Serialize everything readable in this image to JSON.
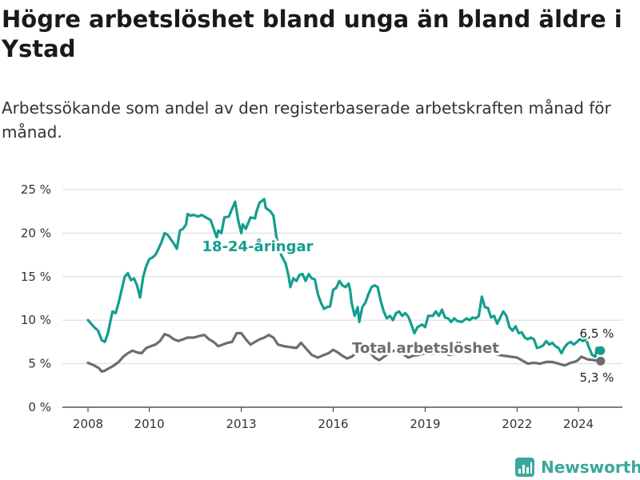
{
  "title": "Högre arbetslöshet bland unga än bland äldre i Ystad",
  "subtitle": "Arbetssökande som andel av den registerbaserade arbetskraften månad för månad.",
  "brand": {
    "name": "Newsworthy",
    "icon": "bar-chart-logo-icon",
    "color": "#3aa89c"
  },
  "chart_data": {
    "type": "line",
    "title": "Högre arbetslöshet bland unga än bland äldre i Ystad",
    "subtitle": "Arbetssökande som andel av den registerbaserade arbetskraften månad för månad.",
    "xlabel": "",
    "ylabel": "",
    "ylim": [
      0,
      25
    ],
    "xlim": [
      2007.5,
      2025.0
    ],
    "y_ticks": [
      0,
      5,
      10,
      15,
      20,
      25
    ],
    "y_tick_labels": [
      "0 %",
      "5 %",
      "10 %",
      "15 %",
      "20 %",
      "25 %"
    ],
    "x_ticks": [
      2008,
      2010,
      2013,
      2016,
      2019,
      2022,
      2024
    ],
    "x_tick_labels": [
      "2008",
      "2010",
      "2013",
      "2016",
      "2019",
      "2022",
      "2024"
    ],
    "grid": true,
    "legend": "inline labels",
    "series": [
      {
        "name": "18-24-åringar",
        "color": "#139e8e",
        "end_label": "6,5 %",
        "points": [
          [
            2008.0,
            10.0
          ],
          [
            2008.2,
            9.2
          ],
          [
            2008.33,
            8.8
          ],
          [
            2008.45,
            7.7
          ],
          [
            2008.55,
            7.5
          ],
          [
            2008.65,
            8.5
          ],
          [
            2008.8,
            11.0
          ],
          [
            2008.9,
            10.8
          ],
          [
            2009.0,
            12.0
          ],
          [
            2009.1,
            13.5
          ],
          [
            2009.2,
            15.0
          ],
          [
            2009.3,
            15.4
          ],
          [
            2009.4,
            14.6
          ],
          [
            2009.5,
            14.8
          ],
          [
            2009.6,
            14.0
          ],
          [
            2009.7,
            12.6
          ],
          [
            2009.8,
            15.0
          ],
          [
            2009.9,
            16.2
          ],
          [
            2010.0,
            17.0
          ],
          [
            2010.1,
            17.2
          ],
          [
            2010.2,
            17.5
          ],
          [
            2010.3,
            18.2
          ],
          [
            2010.4,
            19.0
          ],
          [
            2010.5,
            20.0
          ],
          [
            2010.6,
            19.8
          ],
          [
            2010.7,
            19.3
          ],
          [
            2010.8,
            18.8
          ],
          [
            2010.9,
            18.2
          ],
          [
            2011.0,
            20.3
          ],
          [
            2011.1,
            20.5
          ],
          [
            2011.2,
            21.0
          ],
          [
            2011.25,
            22.2
          ],
          [
            2011.35,
            22.0
          ],
          [
            2011.45,
            22.1
          ],
          [
            2011.6,
            21.9
          ],
          [
            2011.7,
            22.1
          ],
          [
            2011.85,
            21.8
          ],
          [
            2012.0,
            21.5
          ],
          [
            2012.1,
            20.5
          ],
          [
            2012.2,
            19.5
          ],
          [
            2012.25,
            20.3
          ],
          [
            2012.35,
            20.0
          ],
          [
            2012.45,
            21.8
          ],
          [
            2012.6,
            21.9
          ],
          [
            2012.7,
            22.8
          ],
          [
            2012.8,
            23.6
          ],
          [
            2012.9,
            21.5
          ],
          [
            2013.0,
            20.0
          ],
          [
            2013.05,
            21.0
          ],
          [
            2013.15,
            20.5
          ],
          [
            2013.3,
            21.8
          ],
          [
            2013.45,
            21.7
          ],
          [
            2013.5,
            22.5
          ],
          [
            2013.6,
            23.5
          ],
          [
            2013.75,
            23.9
          ],
          [
            2013.8,
            22.9
          ],
          [
            2013.95,
            22.5
          ],
          [
            2014.05,
            22.0
          ],
          [
            2014.15,
            19.5
          ],
          [
            2014.3,
            17.5
          ],
          [
            2014.45,
            16.5
          ],
          [
            2014.55,
            15.0
          ],
          [
            2014.6,
            13.8
          ],
          [
            2014.7,
            14.8
          ],
          [
            2014.8,
            14.5
          ],
          [
            2014.9,
            15.2
          ],
          [
            2015.0,
            15.3
          ],
          [
            2015.1,
            14.5
          ],
          [
            2015.2,
            15.3
          ],
          [
            2015.3,
            14.8
          ],
          [
            2015.4,
            14.7
          ],
          [
            2015.5,
            13.0
          ],
          [
            2015.6,
            12.0
          ],
          [
            2015.7,
            11.3
          ],
          [
            2015.8,
            11.5
          ],
          [
            2015.9,
            11.6
          ],
          [
            2016.0,
            13.5
          ],
          [
            2016.1,
            13.7
          ],
          [
            2016.2,
            14.5
          ],
          [
            2016.3,
            14.0
          ],
          [
            2016.4,
            13.8
          ],
          [
            2016.5,
            14.2
          ],
          [
            2016.55,
            13.5
          ],
          [
            2016.6,
            12.0
          ],
          [
            2016.7,
            10.5
          ],
          [
            2016.8,
            11.5
          ],
          [
            2016.85,
            9.8
          ],
          [
            2016.95,
            11.5
          ],
          [
            2017.05,
            12.0
          ],
          [
            2017.15,
            13.0
          ],
          [
            2017.25,
            13.8
          ],
          [
            2017.35,
            14.0
          ],
          [
            2017.45,
            13.8
          ],
          [
            2017.55,
            12.2
          ],
          [
            2017.65,
            11.0
          ],
          [
            2017.75,
            10.2
          ],
          [
            2017.85,
            10.5
          ],
          [
            2017.95,
            10.0
          ],
          [
            2018.05,
            10.8
          ],
          [
            2018.15,
            11.0
          ],
          [
            2018.25,
            10.5
          ],
          [
            2018.35,
            10.8
          ],
          [
            2018.45,
            10.4
          ],
          [
            2018.55,
            9.5
          ],
          [
            2018.65,
            8.5
          ],
          [
            2018.75,
            9.2
          ],
          [
            2018.9,
            9.5
          ],
          [
            2019.0,
            9.2
          ],
          [
            2019.1,
            10.5
          ],
          [
            2019.25,
            10.5
          ],
          [
            2019.35,
            11.0
          ],
          [
            2019.45,
            10.5
          ],
          [
            2019.55,
            11.2
          ],
          [
            2019.65,
            10.3
          ],
          [
            2019.75,
            10.2
          ],
          [
            2019.85,
            9.8
          ],
          [
            2019.95,
            10.2
          ],
          [
            2020.05,
            9.9
          ],
          [
            2020.2,
            9.8
          ],
          [
            2020.35,
            10.2
          ],
          [
            2020.45,
            10.0
          ],
          [
            2020.55,
            10.3
          ],
          [
            2020.65,
            10.2
          ],
          [
            2020.75,
            10.5
          ],
          [
            2020.85,
            12.7
          ],
          [
            2020.95,
            11.5
          ],
          [
            2021.05,
            11.4
          ],
          [
            2021.15,
            10.3
          ],
          [
            2021.25,
            10.5
          ],
          [
            2021.35,
            9.6
          ],
          [
            2021.45,
            10.3
          ],
          [
            2021.55,
            11.0
          ],
          [
            2021.65,
            10.5
          ],
          [
            2021.75,
            9.2
          ],
          [
            2021.85,
            8.8
          ],
          [
            2021.95,
            9.3
          ],
          [
            2022.05,
            8.5
          ],
          [
            2022.15,
            8.6
          ],
          [
            2022.25,
            8.0
          ],
          [
            2022.35,
            7.8
          ],
          [
            2022.45,
            8.0
          ],
          [
            2022.55,
            7.8
          ],
          [
            2022.65,
            6.8
          ],
          [
            2022.75,
            6.9
          ],
          [
            2022.85,
            7.1
          ],
          [
            2022.95,
            7.6
          ],
          [
            2023.05,
            7.2
          ],
          [
            2023.15,
            7.4
          ],
          [
            2023.25,
            7.0
          ],
          [
            2023.35,
            6.8
          ],
          [
            2023.45,
            6.2
          ],
          [
            2023.55,
            6.9
          ],
          [
            2023.65,
            7.3
          ],
          [
            2023.75,
            7.5
          ],
          [
            2023.85,
            7.2
          ],
          [
            2023.95,
            7.5
          ],
          [
            2024.05,
            7.8
          ],
          [
            2024.15,
            7.6
          ],
          [
            2024.25,
            7.8
          ],
          [
            2024.35,
            6.8
          ],
          [
            2024.45,
            6.0
          ],
          [
            2024.55,
            5.8
          ],
          [
            2024.6,
            6.8
          ],
          [
            2024.7,
            6.5
          ]
        ]
      },
      {
        "name": "Total arbetslöshet",
        "color": "#6e6c73",
        "end_label": "5,3 %",
        "points": [
          [
            2008.0,
            5.1
          ],
          [
            2008.2,
            4.8
          ],
          [
            2008.35,
            4.5
          ],
          [
            2008.45,
            4.1
          ],
          [
            2008.55,
            4.2
          ],
          [
            2008.7,
            4.5
          ],
          [
            2008.85,
            4.8
          ],
          [
            2009.0,
            5.2
          ],
          [
            2009.15,
            5.8
          ],
          [
            2009.3,
            6.2
          ],
          [
            2009.45,
            6.5
          ],
          [
            2009.6,
            6.3
          ],
          [
            2009.75,
            6.2
          ],
          [
            2009.9,
            6.8
          ],
          [
            2010.05,
            7.0
          ],
          [
            2010.2,
            7.2
          ],
          [
            2010.35,
            7.6
          ],
          [
            2010.5,
            8.4
          ],
          [
            2010.65,
            8.2
          ],
          [
            2010.8,
            7.8
          ],
          [
            2010.95,
            7.6
          ],
          [
            2011.1,
            7.8
          ],
          [
            2011.25,
            8.0
          ],
          [
            2011.45,
            8.0
          ],
          [
            2011.65,
            8.2
          ],
          [
            2011.8,
            8.3
          ],
          [
            2011.95,
            7.8
          ],
          [
            2012.1,
            7.5
          ],
          [
            2012.25,
            7.0
          ],
          [
            2012.4,
            7.2
          ],
          [
            2012.55,
            7.4
          ],
          [
            2012.7,
            7.5
          ],
          [
            2012.85,
            8.5
          ],
          [
            2013.0,
            8.5
          ],
          [
            2013.15,
            7.8
          ],
          [
            2013.3,
            7.2
          ],
          [
            2013.45,
            7.5
          ],
          [
            2013.6,
            7.8
          ],
          [
            2013.75,
            8.0
          ],
          [
            2013.9,
            8.3
          ],
          [
            2014.05,
            8.0
          ],
          [
            2014.2,
            7.2
          ],
          [
            2014.4,
            7.0
          ],
          [
            2014.6,
            6.9
          ],
          [
            2014.8,
            6.8
          ],
          [
            2014.95,
            7.4
          ],
          [
            2015.1,
            6.8
          ],
          [
            2015.3,
            6.0
          ],
          [
            2015.5,
            5.7
          ],
          [
            2015.7,
            6.0
          ],
          [
            2015.85,
            6.2
          ],
          [
            2016.0,
            6.6
          ],
          [
            2016.15,
            6.3
          ],
          [
            2016.3,
            5.9
          ],
          [
            2016.45,
            5.6
          ],
          [
            2016.6,
            5.8
          ],
          [
            2016.75,
            6.2
          ],
          [
            2016.9,
            6.5
          ],
          [
            2017.05,
            6.6
          ],
          [
            2017.2,
            6.3
          ],
          [
            2017.35,
            5.7
          ],
          [
            2017.5,
            5.4
          ],
          [
            2017.7,
            5.9
          ],
          [
            2017.85,
            6.3
          ],
          [
            2018.0,
            6.5
          ],
          [
            2018.2,
            6.3
          ],
          [
            2018.45,
            5.7
          ],
          [
            2018.6,
            5.9
          ],
          [
            2018.8,
            6.0
          ],
          [
            2019.0,
            6.2
          ],
          [
            2019.2,
            6.1
          ],
          [
            2019.4,
            6.3
          ],
          [
            2019.6,
            6.2
          ],
          [
            2019.8,
            6.0
          ],
          [
            2020.0,
            6.2
          ],
          [
            2020.2,
            6.3
          ],
          [
            2020.4,
            6.5
          ],
          [
            2020.6,
            6.4
          ],
          [
            2020.8,
            6.6
          ],
          [
            2021.0,
            6.5
          ],
          [
            2021.2,
            6.3
          ],
          [
            2021.4,
            6.0
          ],
          [
            2021.6,
            5.9
          ],
          [
            2021.8,
            5.8
          ],
          [
            2022.0,
            5.7
          ],
          [
            2022.2,
            5.3
          ],
          [
            2022.35,
            5.0
          ],
          [
            2022.55,
            5.1
          ],
          [
            2022.75,
            5.0
          ],
          [
            2022.95,
            5.2
          ],
          [
            2023.15,
            5.2
          ],
          [
            2023.35,
            5.0
          ],
          [
            2023.55,
            4.8
          ],
          [
            2023.75,
            5.1
          ],
          [
            2023.95,
            5.3
          ],
          [
            2024.1,
            5.8
          ],
          [
            2024.3,
            5.5
          ],
          [
            2024.5,
            5.4
          ],
          [
            2024.7,
            5.3
          ]
        ]
      }
    ]
  }
}
